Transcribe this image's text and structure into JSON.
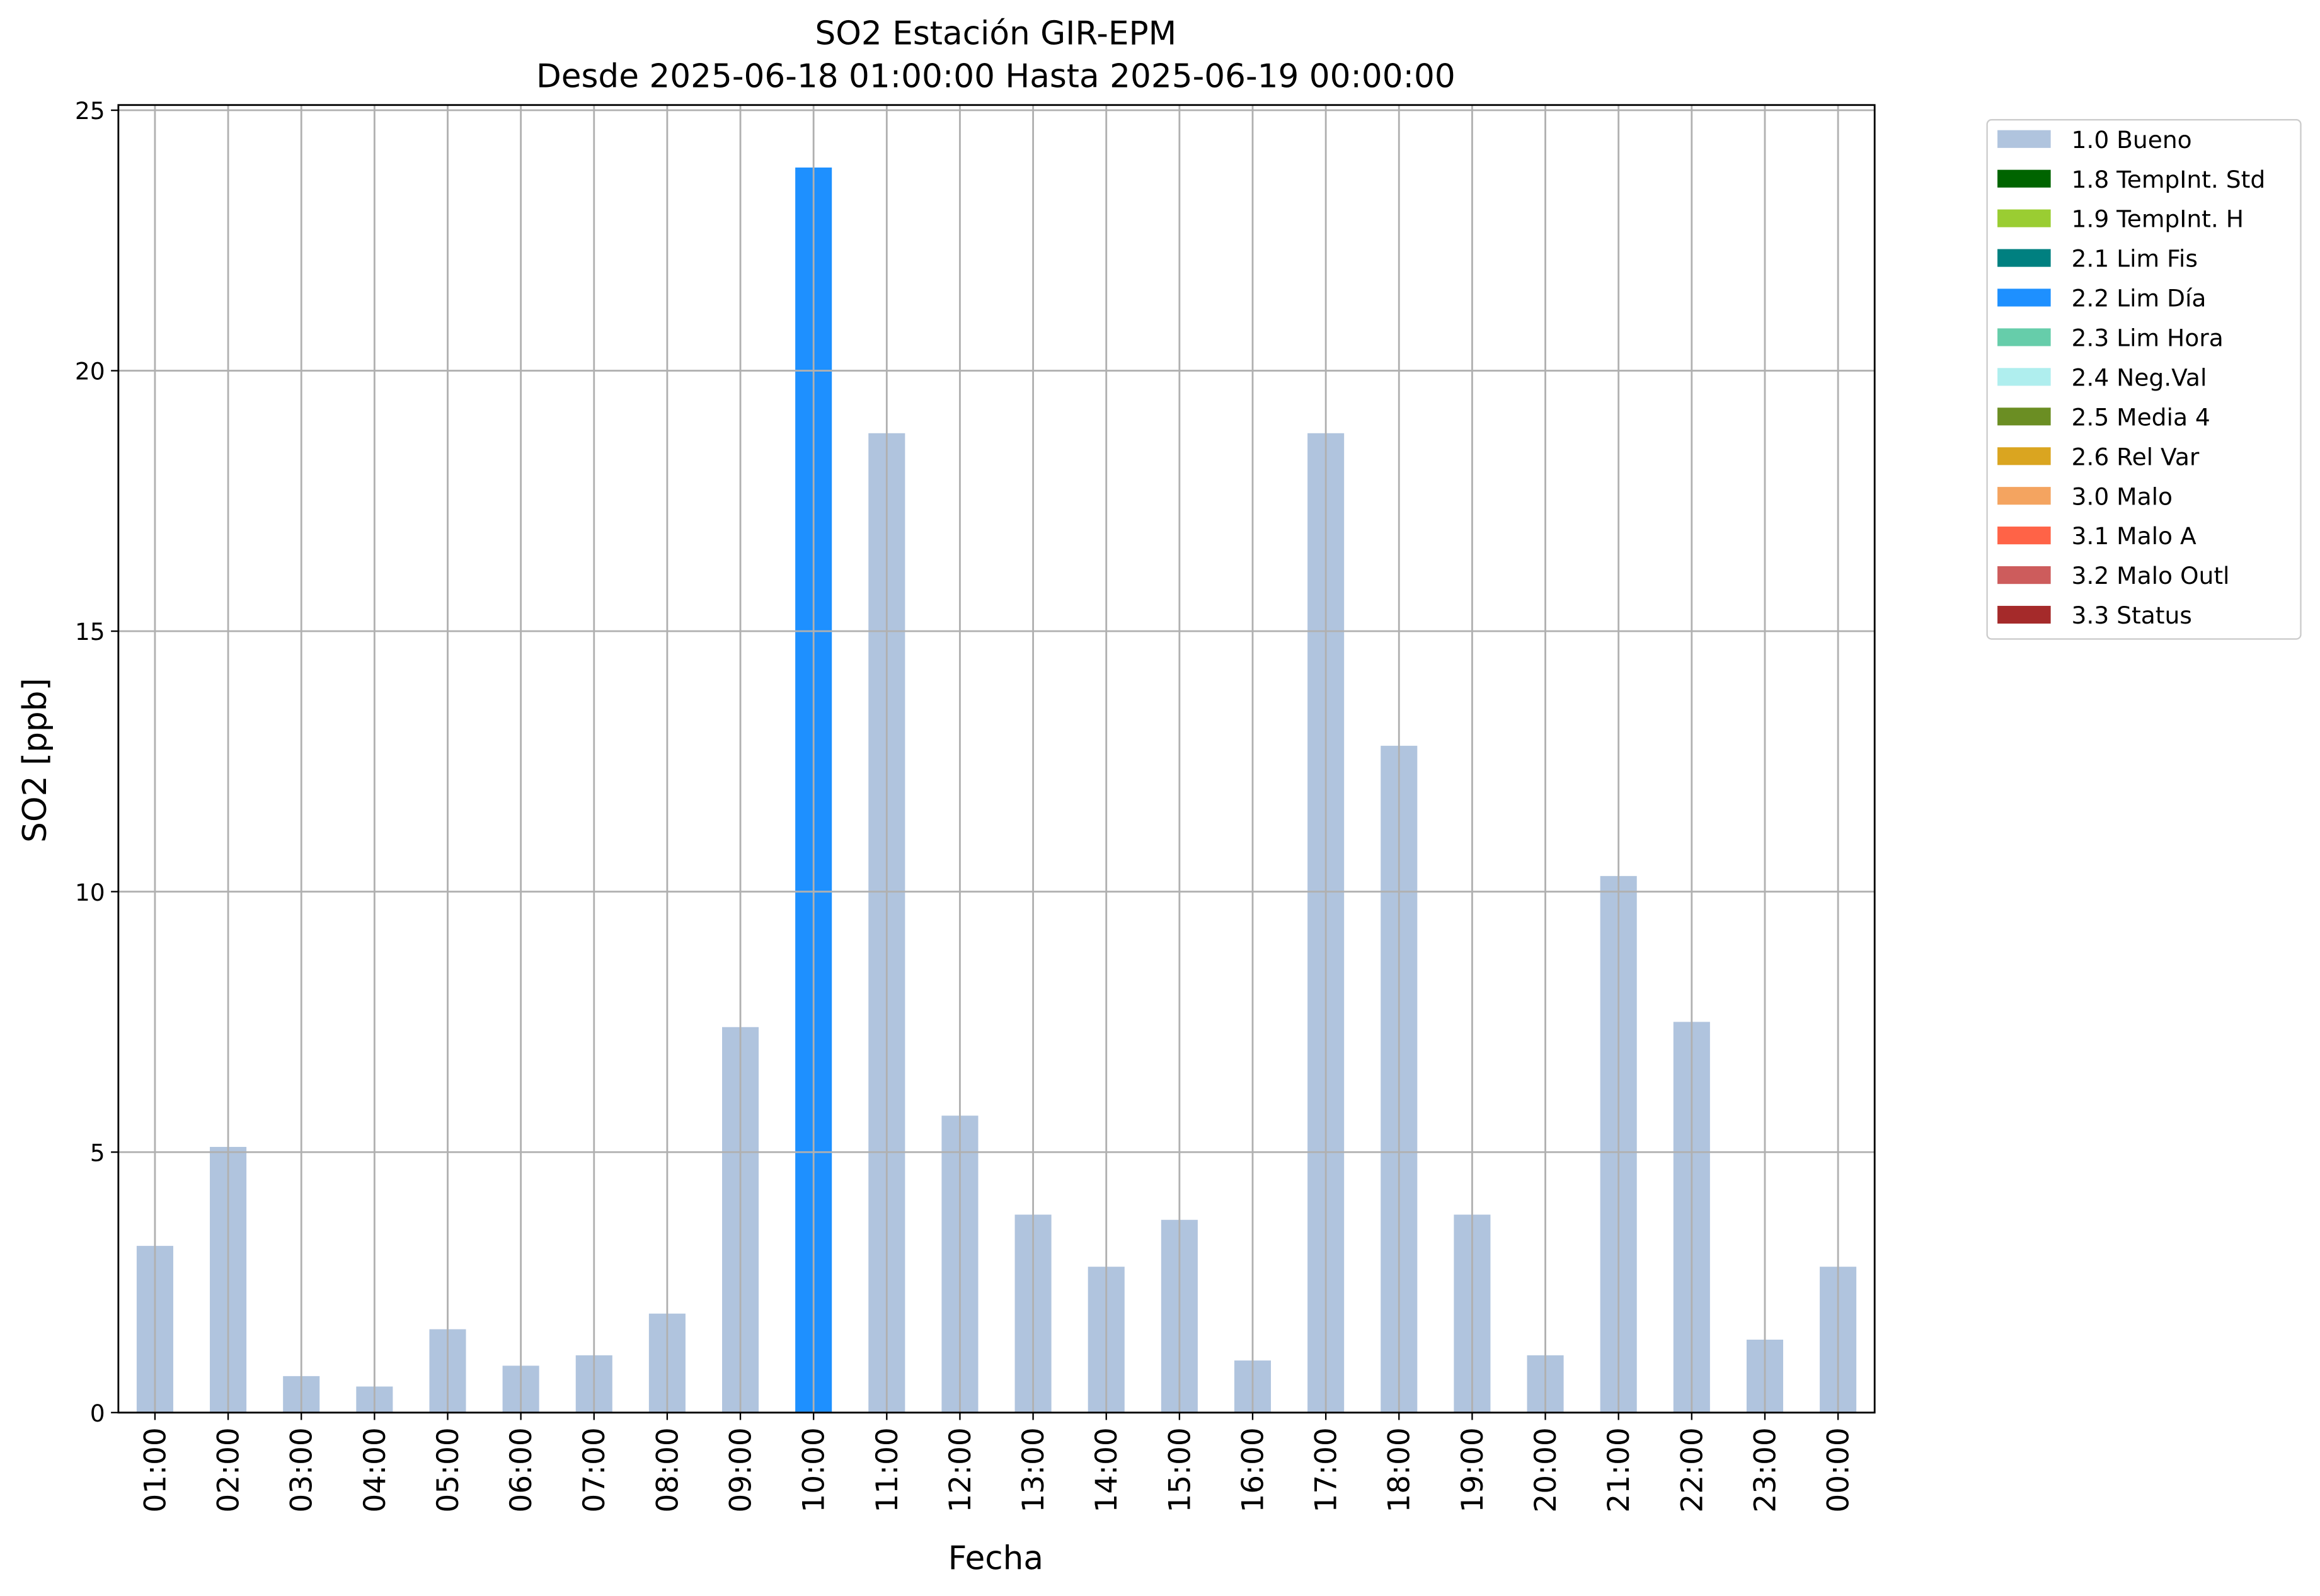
{
  "chart_data": {
    "type": "stacked_bar",
    "title": "SO2 Estación GIR-EPM",
    "subtitle": "Desde 2025-06-18 01:00:00 Hasta 2025-06-19 00:00:00",
    "x_label": "Fecha",
    "y_label": "SO2 [ppb]",
    "categories": [
      "01:00",
      "02:00",
      "03:00",
      "04:00",
      "05:00",
      "06:00",
      "07:00",
      "08:00",
      "09:00",
      "10:00",
      "11:00",
      "12:00",
      "13:00",
      "14:00",
      "15:00",
      "16:00",
      "17:00",
      "18:00",
      "19:00",
      "20:00",
      "21:00",
      "22:00",
      "23:00",
      "00:00"
    ],
    "ylim": [
      0,
      25.1
    ],
    "yticks": [
      0,
      5,
      10,
      15,
      20,
      25
    ],
    "grid": true,
    "legend": "outside-right",
    "series": [
      {
        "name": "1.0 Bueno",
        "color": "#b0c4de",
        "values": [
          3.2,
          5.1,
          0.7,
          0.5,
          1.6,
          0.9,
          1.1,
          1.9,
          7.4,
          null,
          18.8,
          5.7,
          3.8,
          2.8,
          3.7,
          1.0,
          18.8,
          12.8,
          3.8,
          1.1,
          10.3,
          7.5,
          1.4,
          2.8
        ]
      },
      {
        "name": "1.8 TempInt. Std",
        "color": "#006400",
        "values": [
          null,
          null,
          null,
          null,
          null,
          null,
          null,
          null,
          null,
          null,
          null,
          null,
          null,
          null,
          null,
          null,
          null,
          null,
          null,
          null,
          null,
          null,
          null,
          null
        ]
      },
      {
        "name": "1.9 TempInt. H",
        "color": "#9acd32",
        "values": [
          null,
          null,
          null,
          null,
          null,
          null,
          null,
          null,
          null,
          null,
          null,
          null,
          null,
          null,
          null,
          null,
          null,
          null,
          null,
          null,
          null,
          null,
          null,
          null
        ]
      },
      {
        "name": "2.1 Lim Fis",
        "color": "#008080",
        "values": [
          null,
          null,
          null,
          null,
          null,
          null,
          null,
          null,
          null,
          null,
          null,
          null,
          null,
          null,
          null,
          null,
          null,
          null,
          null,
          null,
          null,
          null,
          null,
          null
        ]
      },
      {
        "name": "2.2 Lim Día",
        "color": "#1e90ff",
        "values": [
          null,
          null,
          null,
          null,
          null,
          null,
          null,
          null,
          null,
          23.9,
          null,
          null,
          null,
          null,
          null,
          null,
          null,
          null,
          null,
          null,
          null,
          null,
          null,
          null
        ]
      },
      {
        "name": "2.3 Lim Hora",
        "color": "#66cdaa",
        "values": [
          null,
          null,
          null,
          null,
          null,
          null,
          null,
          null,
          null,
          null,
          null,
          null,
          null,
          null,
          null,
          null,
          null,
          null,
          null,
          null,
          null,
          null,
          null,
          null
        ]
      },
      {
        "name": "2.4 Neg.Val",
        "color": "#afeeee",
        "values": [
          null,
          null,
          null,
          null,
          null,
          null,
          null,
          null,
          null,
          null,
          null,
          null,
          null,
          null,
          null,
          null,
          null,
          null,
          null,
          null,
          null,
          null,
          null,
          null
        ]
      },
      {
        "name": "2.5 Media 4",
        "color": "#6b8e23",
        "values": [
          null,
          null,
          null,
          null,
          null,
          null,
          null,
          null,
          null,
          null,
          null,
          null,
          null,
          null,
          null,
          null,
          null,
          null,
          null,
          null,
          null,
          null,
          null,
          null
        ]
      },
      {
        "name": "2.6 Rel Var",
        "color": "#daa520",
        "values": [
          null,
          null,
          null,
          null,
          null,
          null,
          null,
          null,
          null,
          null,
          null,
          null,
          null,
          null,
          null,
          null,
          null,
          null,
          null,
          null,
          null,
          null,
          null,
          null
        ]
      },
      {
        "name": "3.0 Malo",
        "color": "#f4a460",
        "values": [
          null,
          null,
          null,
          null,
          null,
          null,
          null,
          null,
          null,
          null,
          null,
          null,
          null,
          null,
          null,
          null,
          null,
          null,
          null,
          null,
          null,
          null,
          null,
          null
        ]
      },
      {
        "name": "3.1 Malo A",
        "color": "#ff6347",
        "values": [
          null,
          null,
          null,
          null,
          null,
          null,
          null,
          null,
          null,
          null,
          null,
          null,
          null,
          null,
          null,
          null,
          null,
          null,
          null,
          null,
          null,
          null,
          null,
          null
        ]
      },
      {
        "name": "3.2 Malo Outl",
        "color": "#cd5c5c",
        "values": [
          null,
          null,
          null,
          null,
          null,
          null,
          null,
          null,
          null,
          null,
          null,
          null,
          null,
          null,
          null,
          null,
          null,
          null,
          null,
          null,
          null,
          null,
          null,
          null
        ]
      },
      {
        "name": "3.3 Status",
        "color": "#a52a2a",
        "values": [
          null,
          null,
          null,
          null,
          null,
          null,
          null,
          null,
          null,
          null,
          null,
          null,
          null,
          null,
          null,
          null,
          null,
          null,
          null,
          null,
          null,
          null,
          null,
          null
        ]
      }
    ]
  }
}
